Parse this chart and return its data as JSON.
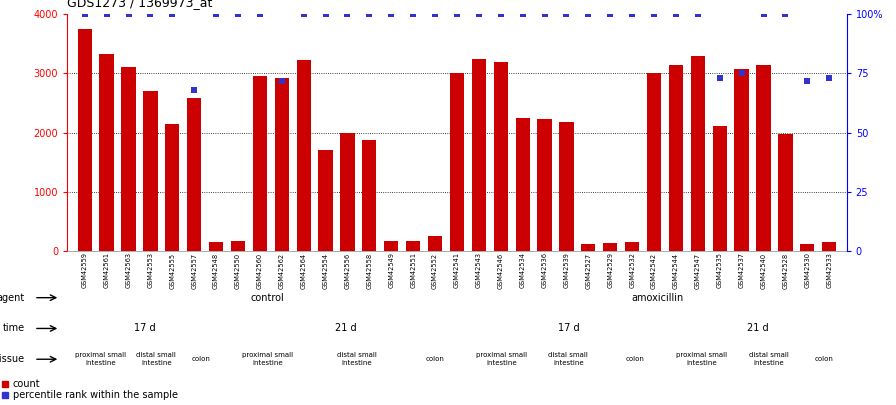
{
  "title": "GDS1273 / 1369973_at",
  "samples": [
    "GSM42559",
    "GSM42561",
    "GSM42563",
    "GSM42553",
    "GSM42555",
    "GSM42557",
    "GSM42548",
    "GSM42550",
    "GSM42560",
    "GSM42562",
    "GSM42564",
    "GSM42554",
    "GSM42556",
    "GSM42558",
    "GSM42549",
    "GSM42551",
    "GSM42552",
    "GSM42541",
    "GSM42543",
    "GSM42546",
    "GSM42534",
    "GSM42536",
    "GSM42539",
    "GSM42527",
    "GSM42529",
    "GSM42532",
    "GSM42542",
    "GSM42544",
    "GSM42547",
    "GSM42535",
    "GSM42537",
    "GSM42540",
    "GSM42528",
    "GSM42530",
    "GSM42533"
  ],
  "counts": [
    3750,
    3320,
    3100,
    2700,
    2150,
    2580,
    150,
    170,
    2950,
    2930,
    3220,
    1700,
    1990,
    1880,
    175,
    175,
    250,
    3010,
    3250,
    3190,
    2250,
    2230,
    2180,
    120,
    130,
    150,
    3000,
    3150,
    3300,
    2120,
    3080,
    3150,
    1980,
    120,
    150
  ],
  "pct_dots": [
    100,
    100,
    100,
    100,
    100,
    68,
    100,
    100,
    100,
    72,
    100,
    100,
    100,
    100,
    100,
    100,
    100,
    100,
    100,
    100,
    100,
    100,
    100,
    100,
    100,
    100,
    100,
    100,
    100,
    73,
    75,
    100,
    100,
    72,
    73
  ],
  "bar_color": "#cc0000",
  "dot_color": "#3333cc",
  "agent_control_color": "#bbeeaa",
  "agent_amox_color": "#55cc55",
  "time_color_17d": "#bbbbee",
  "time_color_21d": "#8888cc",
  "tissue_proximal_color": "#f0c8b8",
  "tissue_distal_color": "#e0a8a8",
  "tissue_colon_color": "#cc7777",
  "n_total": 35,
  "n_ctrl": 18,
  "n_amox": 17,
  "time_blocks": [
    7,
    11,
    9,
    8
  ],
  "time_labels": [
    "17 d",
    "21 d",
    "17 d",
    "21 d"
  ],
  "tissue_segments": [
    [
      3,
      "proximal"
    ],
    [
      2,
      "distal"
    ],
    [
      2,
      "colon"
    ],
    [
      4,
      "proximal"
    ],
    [
      4,
      "distal"
    ],
    [
      3,
      "colon"
    ],
    [
      3,
      "proximal"
    ],
    [
      3,
      "distal"
    ],
    [
      3,
      "colon"
    ],
    [
      3,
      "proximal"
    ],
    [
      3,
      "distal"
    ],
    [
      2,
      "colon"
    ]
  ]
}
